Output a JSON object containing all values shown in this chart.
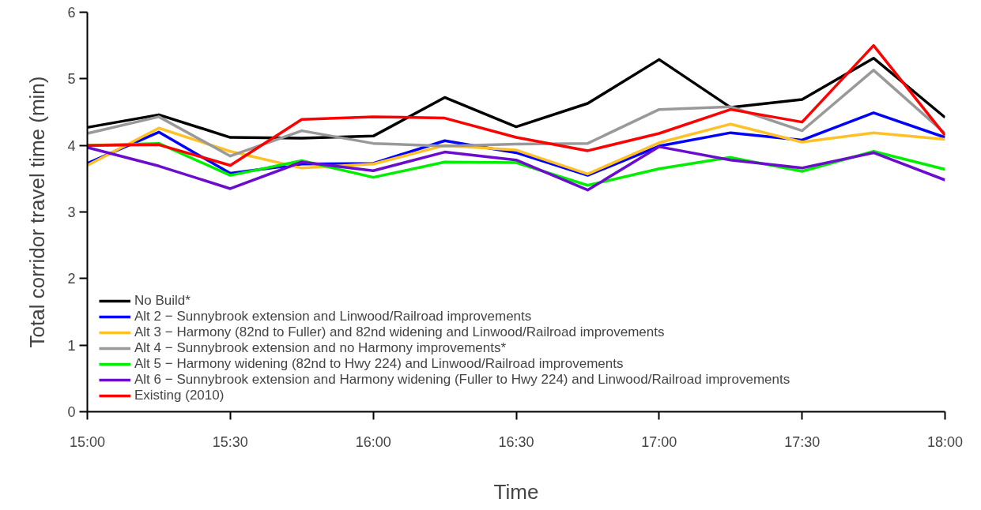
{
  "chart_data": {
    "type": "line",
    "xlabel": "Time",
    "ylabel": "Total corridor travel time (min)",
    "x": [
      15,
      15.25,
      15.5,
      15.75,
      16,
      16.25,
      16.5,
      16.75,
      17,
      17.25,
      17.5,
      17.75,
      18
    ],
    "xlim": [
      15,
      18
    ],
    "ylim": [
      0,
      6
    ],
    "xticks": [
      {
        "value": 15,
        "label": "15:00"
      },
      {
        "value": 15.5,
        "label": "15:30"
      },
      {
        "value": 16,
        "label": "16:00"
      },
      {
        "value": 16.5,
        "label": "16:30"
      },
      {
        "value": 17,
        "label": "17:00"
      },
      {
        "value": 17.5,
        "label": "17:30"
      },
      {
        "value": 18,
        "label": "18:00"
      }
    ],
    "yticks": [
      0,
      1,
      2,
      3,
      4,
      5,
      6
    ],
    "grid": false,
    "legend": "bottom left",
    "line_style": "solid",
    "series": [
      {
        "name": "No Build*",
        "color": "#000000",
        "values": [
          4.27,
          4.46,
          4.12,
          4.11,
          4.14,
          4.72,
          4.28,
          4.63,
          5.29,
          4.57,
          4.69,
          5.31,
          4.42
        ]
      },
      {
        "name": "Alt 2 − Sunnybrook extension and Linwood/Railroad improvements",
        "color": "#0000ff",
        "values": [
          3.73,
          4.2,
          3.58,
          3.72,
          3.73,
          4.07,
          3.89,
          3.55,
          3.99,
          4.19,
          4.08,
          4.49,
          4.12
        ]
      },
      {
        "name": "Alt 3 − Harmony (82nd to Fuller) and 82nd widening and Linwood/Railroad improvements",
        "color": "#ffc125",
        "values": [
          3.7,
          4.26,
          3.91,
          3.66,
          3.72,
          4.0,
          3.93,
          3.57,
          4.04,
          4.32,
          4.05,
          4.19,
          4.09
        ]
      },
      {
        "name": "Alt 4 − Sunnybrook extension and no Harmony improvements*",
        "color": "#999999",
        "values": [
          4.18,
          4.43,
          3.84,
          4.22,
          4.03,
          3.99,
          4.02,
          4.03,
          4.54,
          4.58,
          4.22,
          5.13,
          4.18
        ]
      },
      {
        "name": "Alt 5 − Harmony widening (82nd to Hwy 224) and Linwood/Railroad improvements",
        "color": "#00ee00",
        "values": [
          4.0,
          4.03,
          3.55,
          3.77,
          3.52,
          3.75,
          3.74,
          3.4,
          3.65,
          3.82,
          3.61,
          3.91,
          3.64
        ]
      },
      {
        "name": "Alt 6 − Sunnybrook extension and Harmony widening (Fuller to Hwy 224) and Linwood/Railroad improvements",
        "color": "#6a0dcd",
        "values": [
          3.97,
          3.69,
          3.35,
          3.75,
          3.62,
          3.9,
          3.78,
          3.33,
          3.98,
          3.78,
          3.66,
          3.89,
          3.48
        ]
      },
      {
        "name": "Existing (2010)",
        "color": "#ff0000",
        "values": [
          4.0,
          4.01,
          3.7,
          4.39,
          4.43,
          4.41,
          4.12,
          3.92,
          4.18,
          4.54,
          4.35,
          5.5,
          4.15
        ]
      }
    ]
  }
}
